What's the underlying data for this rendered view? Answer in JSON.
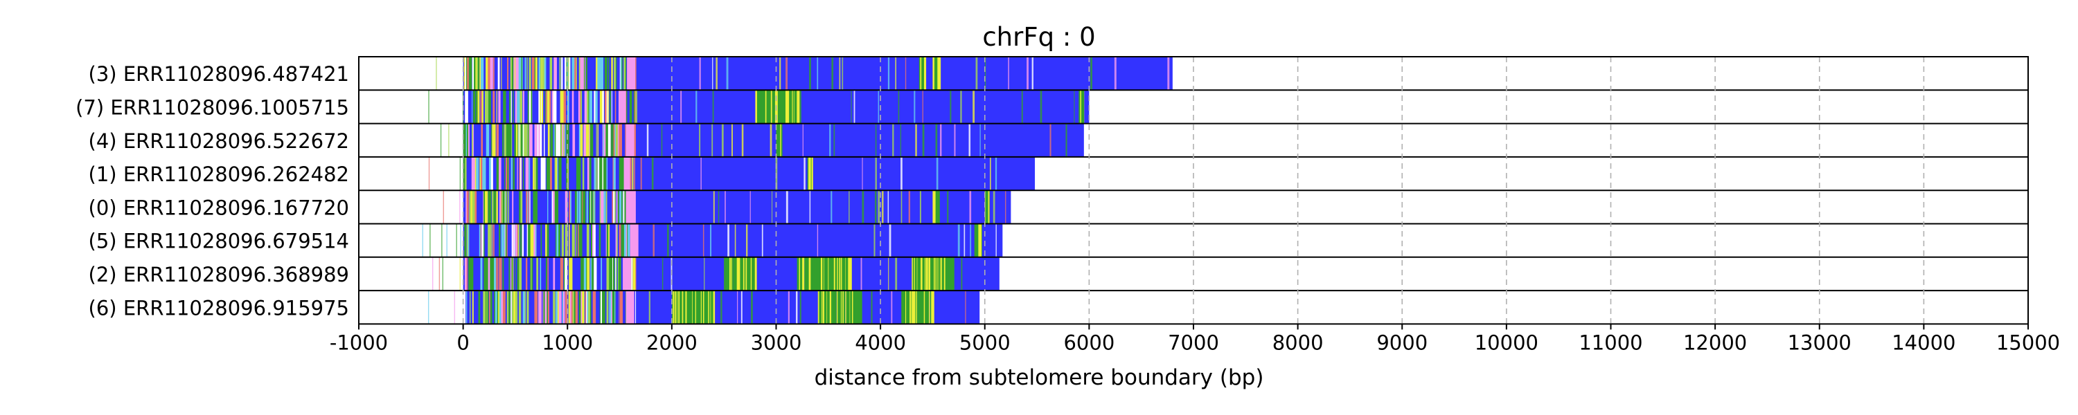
{
  "chart_data": {
    "type": "bar",
    "orientation": "horizontal",
    "title": "chrFq : 0",
    "xlabel": "distance from subtelomere boundary (bp)",
    "ylabel": "",
    "xlim": [
      -1000,
      15000
    ],
    "xticks": [
      -1000,
      0,
      1000,
      2000,
      3000,
      4000,
      5000,
      6000,
      7000,
      8000,
      9000,
      10000,
      11000,
      12000,
      13000,
      14000,
      15000
    ],
    "vertical_grid": "dashed",
    "reads": [
      {
        "label": "(3) ERR11028096.487421",
        "start": -450,
        "end": 6800,
        "pink": [
          1570,
          1650
        ],
        "green": [
          [
            4370,
            4420
          ],
          [
            4500,
            4560
          ]
        ]
      },
      {
        "label": "(7) ERR11028096.1005715",
        "start": -450,
        "end": 6000,
        "pink": [
          1490,
          1560
        ],
        "green": [
          [
            2800,
            3200
          ],
          [
            5900,
            5940
          ]
        ]
      },
      {
        "label": "(4) ERR11028096.522672",
        "start": -450,
        "end": 5950,
        "pink": [
          1560,
          1640
        ],
        "green": [
          [
            3000,
            3050
          ]
        ]
      },
      {
        "label": "(1) ERR11028096.262482",
        "start": -450,
        "end": 5480,
        "pink": [
          1540,
          1600
        ],
        "green": [
          [
            3300,
            3340
          ]
        ]
      },
      {
        "label": "(0) ERR11028096.167720",
        "start": -450,
        "end": 5250,
        "pink": [
          1560,
          1640
        ],
        "green": [
          [
            4500,
            4560
          ],
          [
            5000,
            5040
          ]
        ]
      },
      {
        "label": "(5) ERR11028096.679514",
        "start": -450,
        "end": 5170,
        "pink": [
          1600,
          1680
        ],
        "green": [
          [
            4900,
            4950
          ]
        ]
      },
      {
        "label": "(2) ERR11028096.368989",
        "start": -450,
        "end": 5140,
        "pink": [
          1530,
          1610
        ],
        "green": [
          [
            2500,
            2800
          ],
          [
            3200,
            3700
          ],
          [
            4300,
            4700
          ]
        ]
      },
      {
        "label": "(6) ERR11028096.915975",
        "start": -450,
        "end": 4950,
        "pink": [
          1560,
          1640
        ],
        "green": [
          [
            2000,
            2400
          ],
          [
            3400,
            3800
          ],
          [
            4200,
            4500
          ]
        ]
      }
    ],
    "colors": {
      "repeat": "#3333ff",
      "variant_green": "#33a02c",
      "variant_yellow": "#ecef3a",
      "variant_cyan": "#66ccee",
      "variant_red": "#e8736c",
      "variant_pink": "#f59aee",
      "grid": "#b0b0b0"
    }
  }
}
